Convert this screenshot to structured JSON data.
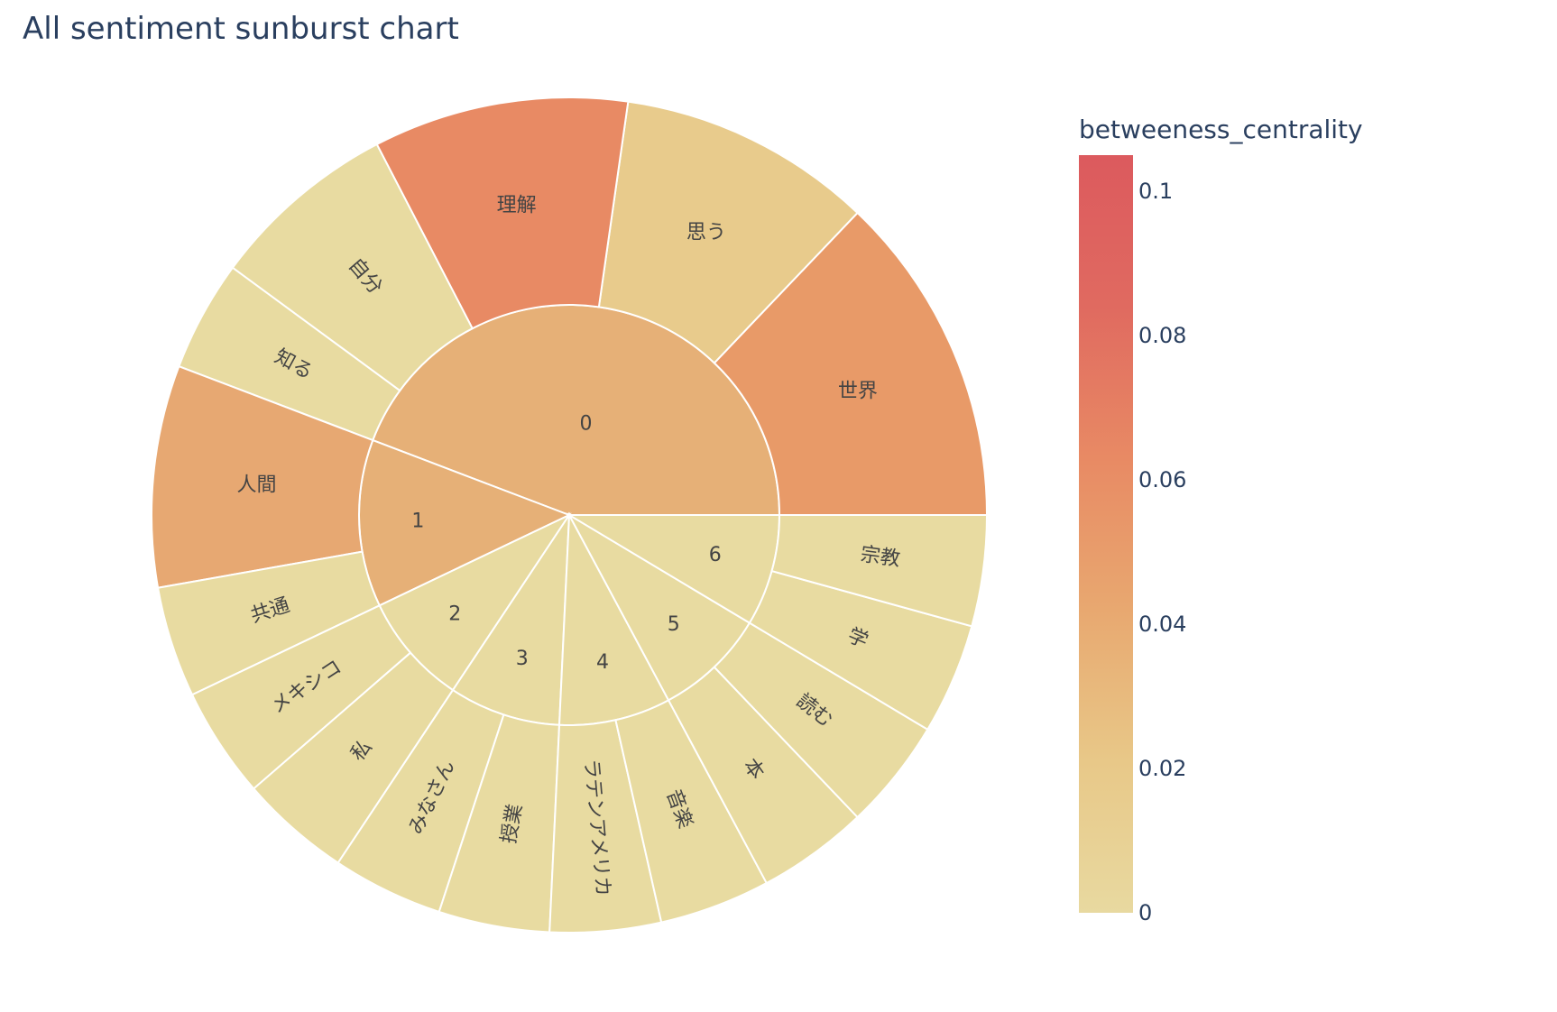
{
  "title": "All sentiment sunburst chart",
  "chart_data": {
    "type": "sunburst",
    "title": "All sentiment sunburst chart",
    "color_metric": "betweeness_centrality",
    "colorbar": {
      "title": "betweeness_centrality",
      "range": [
        0,
        0.105
      ],
      "ticks": [
        0,
        0.02,
        0.04,
        0.06,
        0.08,
        0.1
      ],
      "tick_labels": [
        "0",
        "0.02",
        "0.04",
        "0.06",
        "0.08",
        "0.1"
      ],
      "colorscale": [
        "#e8d9a0",
        "#e8c888",
        "#e8a870",
        "#e88a64",
        "#e06a60",
        "#dc5a5e"
      ]
    },
    "groups": [
      {
        "label": "0",
        "color": "#e6b077",
        "children": [
          {
            "label": "世界",
            "value": 1.5,
            "color": "#e89a68"
          },
          {
            "label": "思う",
            "value": 1.15,
            "color": "#e8cb8c"
          },
          {
            "label": "理解",
            "value": 1.15,
            "color": "#e88a64"
          },
          {
            "label": "自分",
            "value": 0.85,
            "color": "#e8dba1"
          },
          {
            "label": "知る",
            "value": 0.5,
            "color": "#e8dba1"
          }
        ]
      },
      {
        "label": "1",
        "color": "#e6b077",
        "children": [
          {
            "label": "人間",
            "value": 1.0,
            "color": "#e7a872"
          },
          {
            "label": "共通",
            "value": 0.5,
            "color": "#e8dba1"
          }
        ]
      },
      {
        "label": "2",
        "color": "#e8dba1",
        "children": [
          {
            "label": "メキシコ",
            "value": 0.5,
            "color": "#e8dba1"
          },
          {
            "label": "私",
            "value": 0.5,
            "color": "#e8dba1"
          }
        ]
      },
      {
        "label": "3",
        "color": "#e8dba1",
        "children": [
          {
            "label": "みなさん",
            "value": 0.5,
            "color": "#e8dba1"
          },
          {
            "label": "授業",
            "value": 0.5,
            "color": "#e8dba1"
          }
        ]
      },
      {
        "label": "4",
        "color": "#e8dba1",
        "children": [
          {
            "label": "ラテンアメリカ",
            "value": 0.5,
            "color": "#e8dba1"
          },
          {
            "label": "音楽",
            "value": 0.5,
            "color": "#e8dba1"
          }
        ]
      },
      {
        "label": "5",
        "color": "#e8dba1",
        "children": [
          {
            "label": "本",
            "value": 0.5,
            "color": "#e8dba1"
          },
          {
            "label": "読む",
            "value": 0.5,
            "color": "#e8dba1"
          }
        ]
      },
      {
        "label": "6",
        "color": "#e8dba1",
        "children": [
          {
            "label": "学",
            "value": 0.5,
            "color": "#e8dba1"
          },
          {
            "label": "宗教",
            "value": 0.5,
            "color": "#e8dba1"
          }
        ]
      }
    ]
  }
}
